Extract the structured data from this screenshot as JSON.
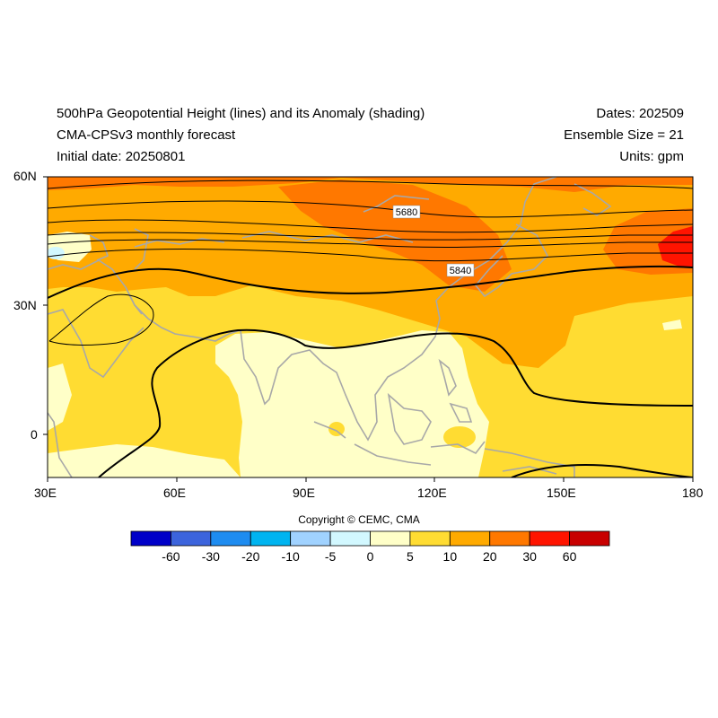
{
  "title": {
    "line1": "500hPa Geopotential Height (lines) and its Anomaly (shading)",
    "line2": "CMA-CPSv3 monthly forecast",
    "line3": "Initial date: 20250801"
  },
  "info": {
    "dates": "Dates: 202509",
    "ensemble": "Ensemble Size = 21",
    "units": "Units: gpm"
  },
  "map": {
    "lon_range": [
      30,
      180
    ],
    "lat_range": [
      -10,
      60
    ],
    "lon_ticks": [
      "30E",
      "60E",
      "90E",
      "120E",
      "150E",
      "180"
    ],
    "lat_ticks": [
      "60N",
      "30N",
      "0"
    ],
    "contour_labels": [
      "5680",
      "5840"
    ]
  },
  "colorbar": {
    "colors": [
      "#0000c8",
      "#3c64dc",
      "#1e8cf0",
      "#00b4f0",
      "#a0d2ff",
      "#d2f8ff",
      "#ffffc8",
      "#ffdc32",
      "#ffaa00",
      "#ff7800",
      "#ff1400",
      "#c80000"
    ],
    "labels": [
      "-60",
      "-30",
      "-20",
      "-10",
      "-5",
      "0",
      "5",
      "10",
      "20",
      "30",
      "60"
    ]
  },
  "copyright": "Copyright © CEMC, CMA"
}
